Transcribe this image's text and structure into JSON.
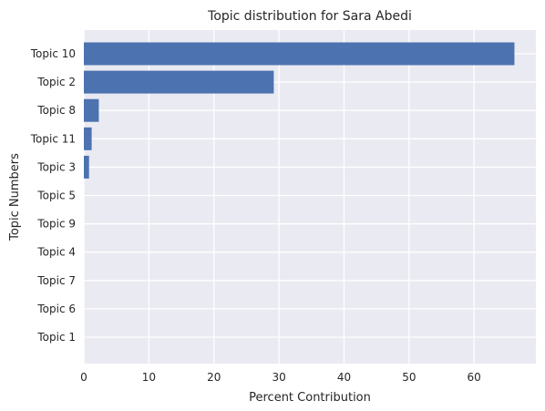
{
  "chart_data": {
    "type": "bar",
    "orientation": "horizontal",
    "title": "Topic distribution for Sara Abedi",
    "xlabel": "Percent Contribution",
    "ylabel": "Topic Numbers",
    "categories": [
      "Topic 10",
      "Topic 2",
      "Topic 8",
      "Topic 11",
      "Topic 3",
      "Topic 5",
      "Topic 9",
      "Topic 4",
      "Topic 7",
      "Topic 6",
      "Topic 1"
    ],
    "values": [
      66.2,
      29.2,
      2.3,
      1.2,
      0.8,
      0,
      0,
      0,
      0,
      0,
      0
    ],
    "xlim": [
      0,
      69.5
    ],
    "xticks": [
      0,
      10,
      20,
      30,
      40,
      50,
      60
    ],
    "grid": true,
    "colors": {
      "bar": "#4c72b0",
      "plot_bg": "#eaeaf2",
      "grid": "#ffffff",
      "text": "#262626"
    }
  }
}
